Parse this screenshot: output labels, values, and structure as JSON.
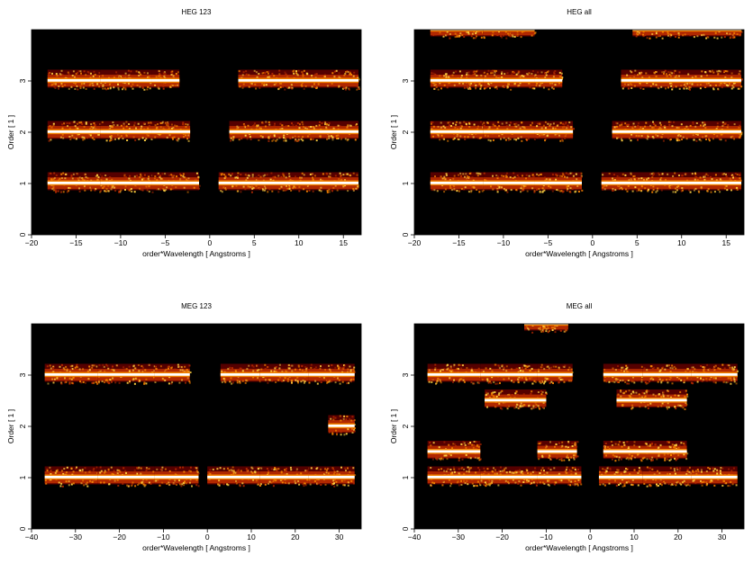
{
  "chart_data": [
    {
      "type": "heatmap",
      "title": "HEG 123",
      "xlabel": "order*Wavelength [ Angstroms ]",
      "ylabel": "Order [ 1 ]",
      "xlim": [
        -20,
        17
      ],
      "ylim": [
        0,
        4
      ],
      "xticks": [
        -20,
        -15,
        -10,
        -5,
        0,
        5,
        10,
        15
      ],
      "yticks": [
        0,
        1,
        2,
        3
      ],
      "colormap": [
        "#000000",
        "#5a0000",
        "#b02800",
        "#f08000",
        "#ffd040",
        "#ffffff"
      ],
      "bands": [
        {
          "order": 1,
          "segments": [
            [
              -18.2,
              -12.3
            ],
            [
              -12.3,
              -6.5
            ],
            [
              -6.5,
              -1.2
            ],
            [
              1.0,
              16.7
            ]
          ]
        },
        {
          "order": 2,
          "segments": [
            [
              -18.2,
              -12.3
            ],
            [
              -12.3,
              -6.5
            ],
            [
              -6.5,
              -2.2
            ],
            [
              2.2,
              16.7
            ]
          ]
        },
        {
          "order": 3,
          "segments": [
            [
              -18.2,
              -12.3
            ],
            [
              -12.3,
              -6.5
            ],
            [
              -6.5,
              -3.4
            ],
            [
              3.2,
              16.7
            ]
          ]
        }
      ]
    },
    {
      "type": "heatmap",
      "title": "HEG all",
      "xlabel": "order*Wavelength [ Angstroms ]",
      "ylabel": "Order [ 1 ]",
      "xlim": [
        -20,
        17
      ],
      "ylim": [
        0,
        4
      ],
      "xticks": [
        -20,
        -15,
        -10,
        -5,
        0,
        5,
        10,
        15
      ],
      "yticks": [
        0,
        1,
        2,
        3
      ],
      "colormap": [
        "#000000",
        "#5a0000",
        "#b02800",
        "#f08000",
        "#ffd040",
        "#ffffff"
      ],
      "bands": [
        {
          "order": 1,
          "segments": [
            [
              -18.2,
              -12.3
            ],
            [
              -12.3,
              -6.5
            ],
            [
              -6.5,
              -1.2
            ],
            [
              1.0,
              16.7
            ]
          ]
        },
        {
          "order": 2,
          "segments": [
            [
              -18.2,
              -12.3
            ],
            [
              -12.3,
              -6.5
            ],
            [
              -6.5,
              -2.2
            ],
            [
              2.2,
              16.7
            ]
          ]
        },
        {
          "order": 3,
          "segments": [
            [
              -18.2,
              -12.3
            ],
            [
              -12.3,
              -6.5
            ],
            [
              -6.5,
              -3.4
            ],
            [
              3.2,
              16.7
            ]
          ]
        },
        {
          "order": 4,
          "segments": [
            [
              -18.2,
              -12.3
            ],
            [
              -12.3,
              -6.5
            ],
            [
              4.5,
              16.7
            ]
          ]
        }
      ]
    },
    {
      "type": "heatmap",
      "title": "MEG 123",
      "xlabel": "order*Wavelength [ Angstroms ]",
      "ylabel": "Order [ 1 ]",
      "xlim": [
        -40,
        35
      ],
      "ylim": [
        0,
        4
      ],
      "xticks": [
        -40,
        -30,
        -20,
        -10,
        0,
        10,
        20,
        30
      ],
      "yticks": [
        0,
        1,
        2,
        3
      ],
      "colormap": [
        "#000000",
        "#5a0000",
        "#b02800",
        "#f08000",
        "#ffd040",
        "#ffffff"
      ],
      "bands": [
        {
          "order": 1,
          "segments": [
            [
              -37,
              -25
            ],
            [
              -25,
              -12
            ],
            [
              -12,
              -2
            ],
            [
              0,
              12
            ],
            [
              12,
              23
            ],
            [
              23,
              33.5
            ]
          ]
        },
        {
          "order": 2,
          "segments": [
            [
              27.5,
              33.5
            ]
          ]
        },
        {
          "order": 3,
          "segments": [
            [
              -37,
              -25
            ],
            [
              -25,
              -12
            ],
            [
              -12,
              -4
            ],
            [
              3,
              12
            ],
            [
              12,
              23
            ],
            [
              23,
              33.5
            ]
          ]
        }
      ]
    },
    {
      "type": "heatmap",
      "title": "MEG all",
      "xlabel": "order*Wavelength [ Angstroms ]",
      "ylabel": "Order [ 1 ]",
      "xlim": [
        -40,
        35
      ],
      "ylim": [
        0,
        4
      ],
      "xticks": [
        -40,
        -30,
        -20,
        -10,
        0,
        10,
        20,
        30
      ],
      "yticks": [
        0,
        1,
        2,
        3
      ],
      "colormap": [
        "#000000",
        "#5a0000",
        "#b02800",
        "#f08000",
        "#ffd040",
        "#ffffff"
      ],
      "bands": [
        {
          "order": 1,
          "segments": [
            [
              -37,
              -25
            ],
            [
              -25,
              -12
            ],
            [
              -12,
              -2
            ],
            [
              2,
              12
            ],
            [
              12,
              23
            ],
            [
              23,
              33.5
            ]
          ]
        },
        {
          "order": 1.5,
          "segments": [
            [
              -37,
              -25
            ],
            [
              -12,
              -3
            ],
            [
              3,
              22
            ]
          ]
        },
        {
          "order": 2.5,
          "segments": [
            [
              -24,
              -10
            ],
            [
              6,
              22
            ]
          ]
        },
        {
          "order": 3,
          "segments": [
            [
              -37,
              -25
            ],
            [
              -25,
              -12
            ],
            [
              -12,
              -4
            ],
            [
              3,
              12
            ],
            [
              12,
              23
            ],
            [
              23,
              33.5
            ]
          ]
        },
        {
          "order": 4,
          "segments": [
            [
              -15,
              -5
            ]
          ]
        }
      ]
    }
  ]
}
